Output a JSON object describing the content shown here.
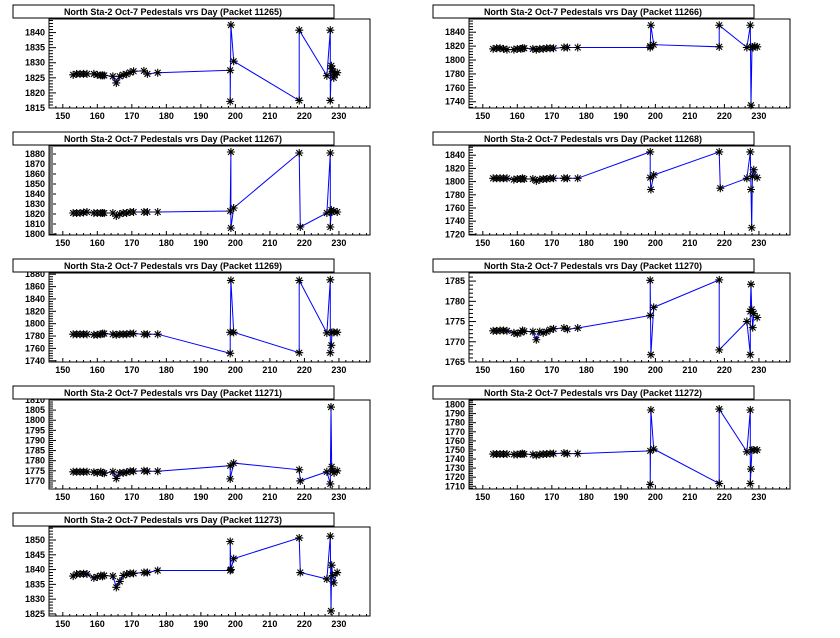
{
  "chart_data": [
    {
      "type": "line",
      "title": "North Sta-2 Oct-7 Pedestals vrs Day (Packet 11265)",
      "xlim": [
        146,
        239
      ],
      "ylim": [
        1815,
        1844.5
      ],
      "ystep": 5,
      "xticks": [
        150,
        160,
        170,
        180,
        190,
        200,
        210,
        220,
        230
      ],
      "x": [
        153,
        154,
        155,
        156,
        157,
        159,
        160,
        161,
        161.5,
        162,
        164.5,
        165.5,
        166.5,
        167.5,
        168.5,
        169.5,
        170.5,
        173.5,
        174.5,
        177.5,
        198.5,
        198.5,
        198.7,
        199.5,
        218.5,
        218.5,
        226.5,
        227.5,
        227.5,
        227.8,
        228,
        228.2,
        228.5,
        228.8,
        229.5
      ],
      "y": [
        1826,
        1826.3,
        1826.3,
        1826.3,
        1826.3,
        1826.3,
        1826,
        1825.8,
        1825.8,
        1825.8,
        1825.5,
        1823.3,
        1825.5,
        1826,
        1826.2,
        1826.8,
        1827.2,
        1827.3,
        1826.3,
        1826.7,
        1827.5,
        1817.2,
        1842.5,
        1830.5,
        1817.5,
        1840.8,
        1825.7,
        1840.8,
        1817.5,
        1829,
        1828,
        1827,
        1825,
        1826,
        1826.7
      ]
    },
    {
      "type": "line",
      "title": "North Sta-2 Oct-7 Pedestals vrs Day (Packet 11266)",
      "xlim": [
        146,
        239
      ],
      "ylim": [
        1731,
        1859
      ],
      "ystep": 20,
      "xticks": [
        150,
        160,
        170,
        180,
        190,
        200,
        210,
        220,
        230
      ],
      "x": [
        153,
        154,
        155,
        156,
        157,
        159,
        160,
        161,
        161.5,
        162,
        164.5,
        165.5,
        166.5,
        167.5,
        168.5,
        169.5,
        170.5,
        173.5,
        174.5,
        177.5,
        198.5,
        198.5,
        198.7,
        199.5,
        218.5,
        218.5,
        226.5,
        227.5,
        227.7,
        228,
        228.3,
        228.8,
        229.5
      ],
      "y": [
        1816,
        1817,
        1817,
        1816,
        1815,
        1815,
        1816,
        1816,
        1817,
        1817,
        1816,
        1815,
        1816,
        1816,
        1817,
        1817,
        1817,
        1818,
        1818,
        1818,
        1818,
        1820,
        1850,
        1822,
        1819,
        1850,
        1818,
        1850,
        1735,
        1819,
        1818,
        1820,
        1819
      ]
    },
    {
      "type": "line",
      "title": "North Sta-2 Oct-7 Pedestals vrs Day (Packet 11267)",
      "xlim": [
        146,
        239
      ],
      "ylim": [
        1799,
        1888
      ],
      "ystep": 10,
      "xticks": [
        150,
        160,
        170,
        180,
        190,
        200,
        210,
        220,
        230
      ],
      "x": [
        153,
        154,
        155,
        156,
        157,
        159,
        160,
        161,
        161.5,
        162,
        164.5,
        165.5,
        166.5,
        167.5,
        168.5,
        169.5,
        170.5,
        173.5,
        174.5,
        177.5,
        198.5,
        198.7,
        198.7,
        199.5,
        218.5,
        218.8,
        226.5,
        227.5,
        227.5,
        227.8,
        228,
        228.5,
        229.5
      ],
      "y": [
        1821,
        1821,
        1821,
        1821.5,
        1822,
        1821,
        1821,
        1821,
        1821,
        1821,
        1821,
        1818,
        1820,
        1821,
        1821,
        1822,
        1822,
        1822,
        1822,
        1822,
        1823,
        1882,
        1806,
        1826,
        1881,
        1807,
        1821,
        1881,
        1807,
        1824,
        1822,
        1823,
        1822
      ]
    },
    {
      "type": "line",
      "title": "North Sta-2 Oct-7 Pedestals vrs Day (Packet 11268)",
      "xlim": [
        146,
        239
      ],
      "ylim": [
        1719,
        1854
      ],
      "ystep": 20,
      "xticks": [
        150,
        160,
        170,
        180,
        190,
        200,
        210,
        220,
        230
      ],
      "x": [
        153,
        154,
        155,
        156,
        157,
        159,
        160,
        161,
        161.5,
        162,
        164.5,
        165.5,
        166.5,
        167.5,
        168.5,
        169.5,
        170.5,
        173.5,
        174.5,
        177.5,
        198.5,
        198.5,
        198.7,
        199.5,
        218.5,
        218.8,
        226.5,
        227.5,
        227.7,
        227.9,
        228.1,
        228.5,
        229.5
      ],
      "y": [
        1805,
        1805,
        1805,
        1805,
        1805,
        1803,
        1804,
        1804,
        1805,
        1804,
        1804,
        1801,
        1803,
        1804,
        1804,
        1805,
        1805,
        1805,
        1805,
        1805,
        1845,
        1806,
        1788,
        1810,
        1845,
        1790,
        1805,
        1845,
        1788,
        1730,
        1808,
        1818,
        1806
      ]
    },
    {
      "type": "line",
      "title": "North Sta-2 Oct-7 Pedestals vrs Day (Packet 11269)",
      "xlim": [
        146,
        239
      ],
      "ylim": [
        1738,
        1882
      ],
      "ystep": 20,
      "xticks": [
        150,
        160,
        170,
        180,
        190,
        200,
        210,
        220,
        230
      ],
      "x": [
        153,
        154,
        155,
        156,
        157,
        159,
        160,
        161,
        161.5,
        162,
        164.5,
        165.5,
        166.5,
        167.5,
        168.5,
        169.5,
        170.5,
        173.5,
        174.5,
        177.5,
        198.5,
        198.5,
        198.7,
        199.5,
        218.5,
        218.5,
        226.5,
        227.5,
        227.5,
        227.8,
        228,
        228.5,
        229.5
      ],
      "y": [
        1783,
        1783,
        1783,
        1783,
        1783,
        1782,
        1782,
        1783,
        1784,
        1784,
        1783,
        1782,
        1783,
        1783,
        1783,
        1784,
        1784,
        1783,
        1783,
        1783,
        1752,
        1786,
        1870,
        1786,
        1753,
        1870,
        1785,
        1871,
        1753,
        1765,
        1786,
        1786,
        1786
      ]
    },
    {
      "type": "line",
      "title": "North Sta-2 Oct-7 Pedestals vrs Day (Packet 11270)",
      "xlim": [
        146,
        239
      ],
      "ylim": [
        1765,
        1787
      ],
      "ystep": 5,
      "xticks": [
        150,
        160,
        170,
        180,
        190,
        200,
        210,
        220,
        230
      ],
      "x": [
        153,
        154,
        155,
        156,
        157,
        159,
        160,
        161,
        161.5,
        162,
        164.5,
        165.5,
        166.5,
        167.5,
        168.5,
        169.5,
        170.5,
        173.5,
        174.5,
        177.5,
        198.5,
        198.5,
        198.7,
        199.5,
        218.5,
        218.5,
        226.5,
        227.5,
        227.5,
        227.7,
        227.9,
        228.2,
        228.5,
        229.5
      ],
      "y": [
        1772.7,
        1772.7,
        1772.8,
        1772.8,
        1772.7,
        1772.2,
        1772,
        1772.3,
        1772.8,
        1772.6,
        1772.5,
        1770.5,
        1772.5,
        1772.2,
        1772.5,
        1773,
        1773.2,
        1773.4,
        1773.1,
        1773.4,
        1776.5,
        1785.2,
        1766.8,
        1778.5,
        1785.3,
        1768,
        1775,
        1766.8,
        1777.5,
        1784.2,
        1778,
        1773.5,
        1777,
        1776
      ]
    },
    {
      "type": "line",
      "title": "North Sta-2 Oct-7 Pedestals vrs Day (Packet 11271)",
      "xlim": [
        146,
        239
      ],
      "ylim": [
        1766,
        1810
      ],
      "ystep": 5,
      "xticks": [
        150,
        160,
        170,
        180,
        190,
        200,
        210,
        220,
        230
      ],
      "x": [
        153,
        154,
        155,
        156,
        157,
        159,
        160,
        161,
        161.5,
        162,
        164.5,
        165.5,
        166.5,
        167.5,
        168.5,
        169.5,
        170.5,
        173.5,
        174.5,
        177.5,
        198.5,
        198.5,
        199.5,
        218.5,
        218.8,
        226.5,
        227.5,
        227.7,
        227.9,
        228.2,
        228.6,
        229.5
      ],
      "y": [
        1774.5,
        1774.5,
        1774.5,
        1774.5,
        1774.5,
        1774.3,
        1774,
        1774.5,
        1774,
        1773.8,
        1774.5,
        1771.2,
        1774,
        1774,
        1774.3,
        1774.8,
        1774.8,
        1775,
        1774.8,
        1774.8,
        1777.5,
        1771,
        1778.8,
        1775.5,
        1770,
        1774.5,
        1768.5,
        1806.5,
        1777,
        1775,
        1774,
        1775
      ]
    },
    {
      "type": "line",
      "title": "North Sta-2 Oct-7 Pedestals vrs Day (Packet 11272)",
      "xlim": [
        146,
        239
      ],
      "ylim": [
        1707,
        1805
      ],
      "ystep": 10,
      "xticks": [
        150,
        160,
        170,
        180,
        190,
        200,
        210,
        220,
        230
      ],
      "x": [
        153,
        154,
        155,
        156,
        157,
        159,
        160,
        161,
        161.5,
        162,
        164.5,
        165.5,
        166.5,
        167.5,
        168.5,
        169.5,
        170.5,
        173.5,
        174.5,
        177.5,
        198.5,
        198.5,
        198.7,
        199.5,
        218.5,
        218.5,
        226.5,
        227.5,
        227.5,
        227.7,
        228,
        228.5,
        229.5
      ],
      "y": [
        1745.5,
        1745.5,
        1745.5,
        1745.5,
        1745.5,
        1745,
        1745,
        1745.5,
        1746,
        1745.5,
        1745,
        1744,
        1745,
        1745.5,
        1745.5,
        1746,
        1746,
        1746.5,
        1746,
        1746,
        1749,
        1712,
        1794,
        1751,
        1713,
        1795,
        1748,
        1794,
        1713,
        1729,
        1750,
        1750,
        1750
      ]
    },
    {
      "type": "line",
      "title": "North Sta-2 Oct-7 Pedestals vrs Day (Packet 11273)",
      "xlim": [
        146,
        239
      ],
      "ylim": [
        1824.3,
        1854.4
      ],
      "ystep": 5,
      "xticks": [
        150,
        160,
        170,
        180,
        190,
        200,
        210,
        220,
        230
      ],
      "x": [
        153,
        154,
        155,
        156,
        157,
        159,
        160,
        161,
        161.5,
        162,
        164.5,
        165.5,
        166.5,
        167.5,
        168.5,
        169.5,
        170.5,
        173.5,
        174.5,
        177.5,
        198.5,
        198.5,
        198.7,
        199.5,
        218.5,
        218.8,
        226.5,
        227.5,
        227.7,
        227.9,
        228.2,
        228.5,
        229.5
      ],
      "y": [
        1837.8,
        1838.5,
        1838.5,
        1838.6,
        1838.5,
        1837.2,
        1837.5,
        1838,
        1837.7,
        1838,
        1837.8,
        1834,
        1836,
        1838,
        1838.5,
        1838.7,
        1838.7,
        1839,
        1839,
        1839.7,
        1839.7,
        1849.5,
        1840,
        1843.7,
        1850.7,
        1839,
        1836.8,
        1851.3,
        1826,
        1841.5,
        1838,
        1835.5,
        1839
      ]
    }
  ],
  "colors": {
    "line": "#0000ff",
    "marker": "#000000",
    "frame": "#000000"
  }
}
